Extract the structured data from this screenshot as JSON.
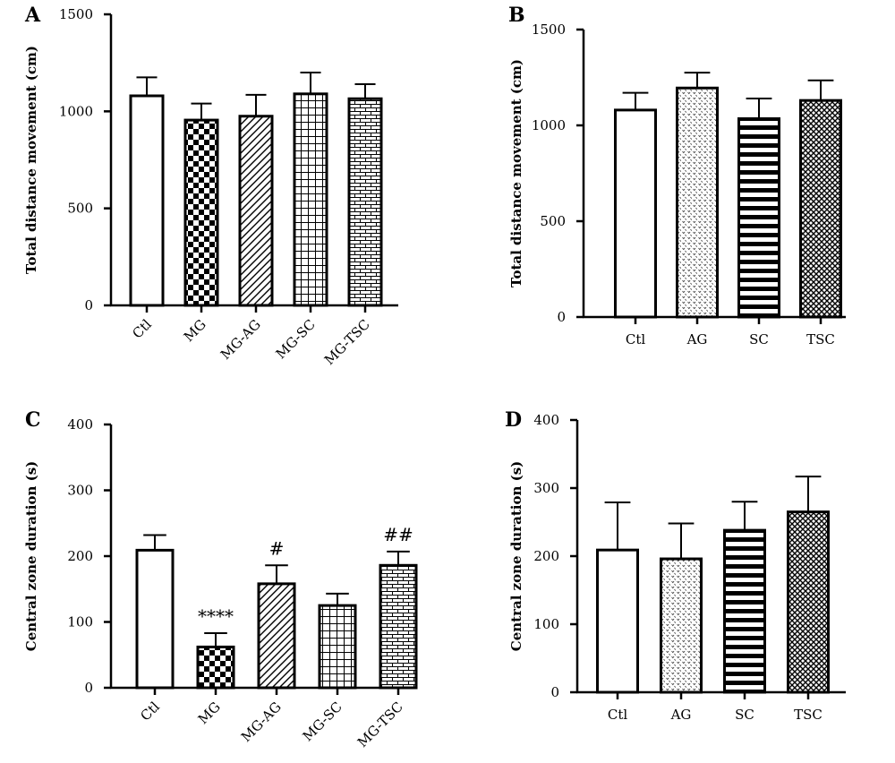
{
  "chart_data": [
    {
      "panel": "A",
      "type": "bar",
      "ylabel": "Total distance movement (cm)",
      "ylim": [
        0,
        1500
      ],
      "yticks": [
        "0",
        "500",
        "1000",
        "1500"
      ],
      "categories": [
        "Ctl",
        "MG",
        "MG-AG",
        "MG-SC",
        "MG-TSC"
      ],
      "values": [
        1080,
        955,
        975,
        1090,
        1065
      ],
      "errors": [
        95,
        85,
        110,
        110,
        75
      ],
      "patterns": [
        "none",
        "checker",
        "diagonal",
        "grid",
        "brick"
      ],
      "annotations": [
        "",
        "",
        "",
        "",
        ""
      ],
      "rotated_labels": true
    },
    {
      "panel": "B",
      "type": "bar",
      "ylabel": "Total distance movement (cm)",
      "ylim": [
        0,
        1500
      ],
      "yticks": [
        "0",
        "500",
        "1000",
        "1500"
      ],
      "categories": [
        "Ctl",
        "AG",
        "SC",
        "TSC"
      ],
      "values": [
        1080,
        1195,
        1035,
        1130
      ],
      "errors": [
        90,
        80,
        105,
        105
      ],
      "patterns": [
        "none",
        "dots",
        "hstripes",
        "crosshatch"
      ],
      "annotations": [
        "",
        "",
        "",
        ""
      ],
      "rotated_labels": false
    },
    {
      "panel": "C",
      "type": "bar",
      "ylabel": "Central zone duration (s)",
      "ylim": [
        0,
        400
      ],
      "yticks": [
        "0",
        "100",
        "200",
        "300",
        "400"
      ],
      "categories": [
        "Ctl",
        "MG",
        "MG-AG",
        "MG-SC",
        "MG-TSC"
      ],
      "values": [
        209,
        62,
        158,
        125,
        186
      ],
      "errors": [
        23,
        21,
        28,
        18,
        21
      ],
      "patterns": [
        "none",
        "checker",
        "diagonal",
        "grid",
        "brick"
      ],
      "annotations": [
        "",
        "****",
        "#",
        "",
        "##"
      ],
      "rotated_labels": true
    },
    {
      "panel": "D",
      "type": "bar",
      "ylabel": "Central zone duration (s)",
      "ylim": [
        0,
        400
      ],
      "yticks": [
        "0",
        "100",
        "200",
        "300",
        "400"
      ],
      "categories": [
        "Ctl",
        "AG",
        "SC",
        "TSC"
      ],
      "values": [
        209,
        196,
        238,
        265
      ],
      "errors": [
        70,
        52,
        42,
        52
      ],
      "patterns": [
        "none",
        "dots",
        "hstripes",
        "crosshatch"
      ],
      "annotations": [
        "",
        "",
        "",
        ""
      ],
      "rotated_labels": false
    }
  ]
}
